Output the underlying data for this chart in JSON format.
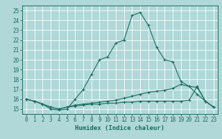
{
  "xlabel": "Humidex (Indice chaleur)",
  "ylabel": "",
  "bg_color": "#b0d8d8",
  "grid_color": "#ffffff",
  "line_color": "#1a6b5e",
  "x_hours": [
    0,
    1,
    2,
    3,
    4,
    5,
    6,
    7,
    8,
    9,
    10,
    11,
    12,
    13,
    14,
    15,
    16,
    17,
    18,
    19,
    20,
    21,
    22,
    23
  ],
  "series": [
    [
      16.0,
      15.8,
      15.5,
      15.0,
      14.9,
      15.0,
      16.0,
      17.0,
      18.5,
      20.0,
      20.3,
      21.7,
      22.0,
      24.5,
      24.8,
      23.5,
      21.3,
      20.0,
      19.8,
      17.8,
      17.3,
      16.5,
      15.8,
      15.2
    ],
    [
      16.0,
      15.8,
      15.5,
      15.2,
      15.0,
      15.2,
      15.4,
      15.5,
      15.6,
      15.7,
      15.8,
      15.9,
      16.1,
      16.3,
      16.5,
      16.7,
      16.8,
      16.9,
      17.1,
      17.5,
      17.3,
      17.2,
      15.8,
      15.2
    ],
    [
      16.0,
      15.8,
      15.5,
      15.2,
      15.0,
      15.2,
      15.3,
      15.4,
      15.5,
      15.5,
      15.6,
      15.6,
      15.7,
      15.7,
      15.8,
      15.8,
      15.8,
      15.8,
      15.8,
      15.8,
      15.9,
      17.3,
      15.8,
      15.2
    ]
  ],
  "ylim": [
    14.5,
    25.5
  ],
  "yticks": [
    15,
    16,
    17,
    18,
    19,
    20,
    21,
    22,
    23,
    24,
    25
  ],
  "xticks": [
    0,
    1,
    2,
    3,
    4,
    5,
    6,
    7,
    8,
    9,
    10,
    11,
    12,
    13,
    14,
    15,
    16,
    17,
    18,
    19,
    20,
    21,
    22,
    23
  ],
  "title_fontsize": 7,
  "label_fontsize": 6.5,
  "tick_fontsize": 5.5,
  "xlim": [
    -0.5,
    23.5
  ]
}
